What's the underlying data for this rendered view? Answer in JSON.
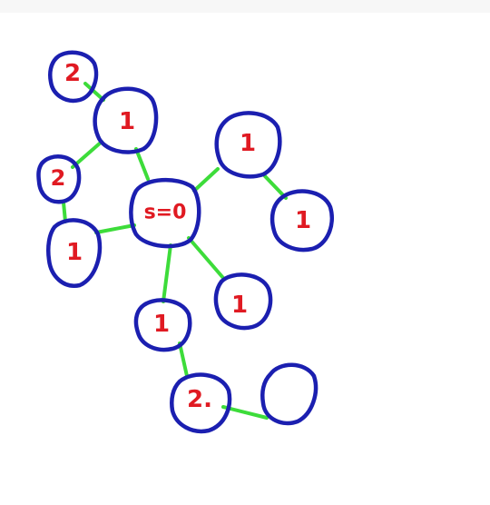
{
  "colors": {
    "node_outline": "#1b1fb0",
    "edge": "#3ddc3a",
    "label": "#e01a22",
    "background": "#ffffff"
  },
  "nodes": [
    {
      "id": "source",
      "label": "s=0"
    },
    {
      "id": "top-left-upper",
      "label": "1"
    },
    {
      "id": "top-left-corner",
      "label": "2"
    },
    {
      "id": "left-middle",
      "label": "2"
    },
    {
      "id": "left-lower",
      "label": "1"
    },
    {
      "id": "upper-right",
      "label": "1"
    },
    {
      "id": "far-right",
      "label": "1"
    },
    {
      "id": "center-lower",
      "label": "1"
    },
    {
      "id": "right-lower",
      "label": "1"
    },
    {
      "id": "bottom",
      "label": "2."
    },
    {
      "id": "bottom-right",
      "label": ""
    }
  ]
}
